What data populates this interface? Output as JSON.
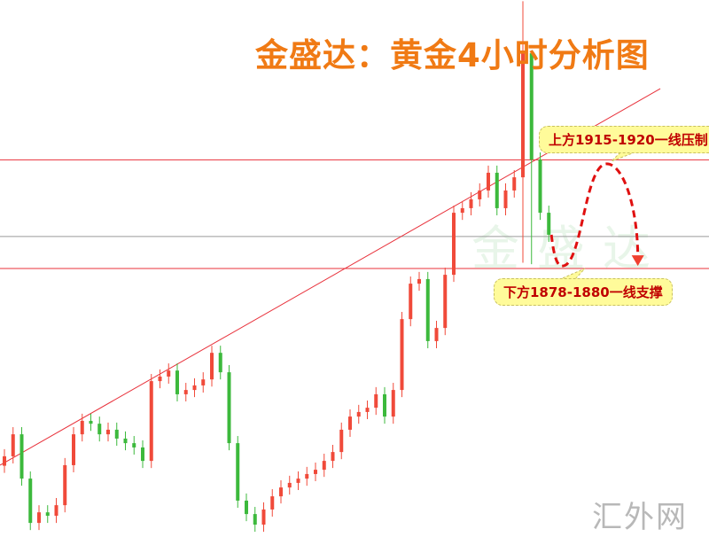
{
  "title": "金盛达：黄金4小时分析图",
  "watermark": "金盛达",
  "site_mark": "汇外网",
  "colors": {
    "up": "#f04a3a",
    "down": "#3cb93c",
    "lines": "#e8303a",
    "mid_line": "#9a9a9a",
    "title": "#f07a14",
    "projection": "#e01010"
  },
  "chart_data": {
    "type": "candlestick",
    "title": "金盛达：黄金4小时分析图",
    "timeframe": "4小时",
    "grid": false,
    "axes_visible": false,
    "first_open": 1810.0,
    "close": [
      1813.3,
      1821.0,
      1805.5,
      1790.0,
      1793.7,
      1792.5,
      1796.2,
      1810.2,
      1821.0,
      1825.7,
      1824.7,
      1821.0,
      1822.6,
      1819.5,
      1817.9,
      1816.4,
      1811.7,
      1839.6,
      1841.2,
      1843.3,
      1835.0,
      1836.5,
      1838.1,
      1840.2,
      1849.5,
      1842.7,
      1817.9,
      1797.8,
      1793.1,
      1789.4,
      1794.7,
      1799.3,
      1802.4,
      1804.0,
      1805.5,
      1807.1,
      1808.6,
      1811.7,
      1814.8,
      1822.6,
      1827.2,
      1828.8,
      1830.3,
      1835.0,
      1827.2,
      1836.5,
      1861.3,
      1873.7,
      1875.3,
      1853.6,
      1858.2,
      1876.8,
      1898.5,
      1900.1,
      1903.2,
      1906.3,
      1912.5,
      1900.1,
      1906.3,
      1910.9,
      1954.3,
      1917.1,
      1898.5,
      1890.8
    ],
    "notable_wicks": [
      {
        "index": 60,
        "high": 1972.5,
        "low": 1881.0
      },
      {
        "index": 61,
        "high": 1925.0,
        "low": 1880.5
      }
    ],
    "horizontal_lines": [
      {
        "price": 1917,
        "role": "resistance",
        "label": "上方1915-1920一线压制"
      },
      {
        "price": 1890.2,
        "role": "middle"
      },
      {
        "price": 1879,
        "role": "support",
        "label": "下方1878-1880一线支撑"
      }
    ],
    "trendline": [
      [
        -0.5,
        1810.2
      ],
      [
        75.9,
        1941.9
      ]
    ],
    "projection": [
      [
        63.3,
        1890.8
      ],
      [
        64.6,
        1879.9
      ],
      [
        69.7,
        1915.6
      ],
      [
        73.3,
        1880.5
      ]
    ]
  },
  "callouts": {
    "resistance": "上方1915-1920一线压制",
    "support": "下方1878-1880一线支撑"
  }
}
